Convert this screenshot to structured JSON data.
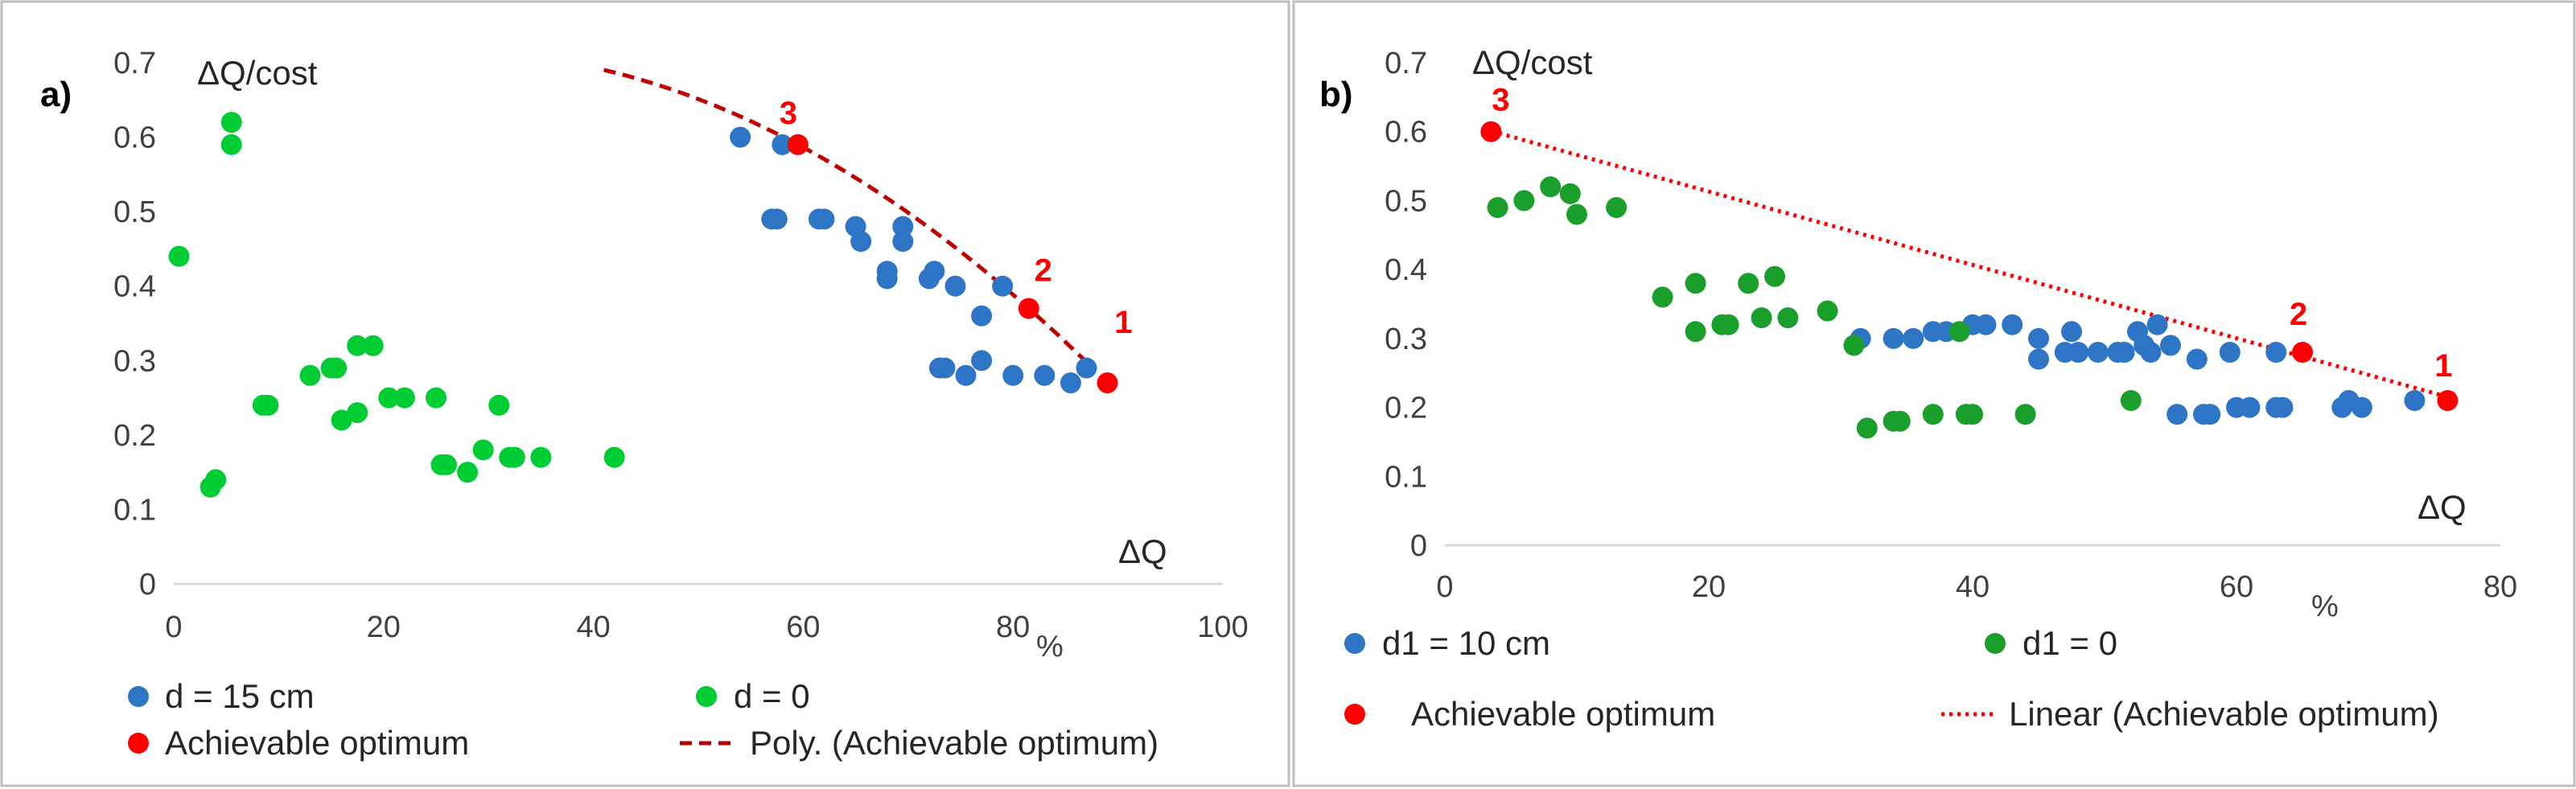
{
  "chart_data": [
    {
      "type": "scatter",
      "panel_label": "a)",
      "ylabel": "ΔQ/cost",
      "xlabel": "ΔQ",
      "percent_label": "%",
      "xlim": [
        0,
        100
      ],
      "ylim": [
        0,
        0.7
      ],
      "x_ticks": [
        "0",
        "20",
        "40",
        "60",
        "80",
        "100"
      ],
      "y_ticks": [
        "0",
        "0.1",
        "0.2",
        "0.3",
        "0.4",
        "0.5",
        "0.6",
        "0.7"
      ],
      "series": [
        {
          "name": "d = 15 cm",
          "color": "#2e75c5",
          "points": [
            [
              54,
              0.6
            ],
            [
              58,
              0.59
            ],
            [
              57,
              0.49
            ],
            [
              57.5,
              0.49
            ],
            [
              61.5,
              0.49
            ],
            [
              62,
              0.49
            ],
            [
              65,
              0.48
            ],
            [
              65.5,
              0.46
            ],
            [
              68,
              0.42
            ],
            [
              68,
              0.41
            ],
            [
              69.5,
              0.48
            ],
            [
              69.5,
              0.46
            ],
            [
              72,
              0.41
            ],
            [
              72.5,
              0.42
            ],
            [
              74.5,
              0.4
            ],
            [
              77,
              0.36
            ],
            [
              79,
              0.4
            ],
            [
              73,
              0.29
            ],
            [
              73.5,
              0.29
            ],
            [
              75.5,
              0.28
            ],
            [
              77,
              0.3
            ],
            [
              80,
              0.28
            ],
            [
              83,
              0.28
            ],
            [
              85.5,
              0.27
            ],
            [
              87,
              0.29
            ]
          ]
        },
        {
          "name": "d = 0",
          "color": "#00cc33",
          "points": [
            [
              0.5,
              0.44
            ],
            [
              5.5,
              0.62
            ],
            [
              5.5,
              0.59
            ],
            [
              3.5,
              0.13
            ],
            [
              4,
              0.14
            ],
            [
              8.5,
              0.24
            ],
            [
              9,
              0.24
            ],
            [
              13,
              0.28
            ],
            [
              15,
              0.29
            ],
            [
              15.5,
              0.29
            ],
            [
              16,
              0.22
            ],
            [
              17.5,
              0.32
            ],
            [
              17.5,
              0.23
            ],
            [
              19,
              0.32
            ],
            [
              20.5,
              0.25
            ],
            [
              22,
              0.25
            ],
            [
              25,
              0.25
            ],
            [
              25.5,
              0.16
            ],
            [
              26,
              0.16
            ],
            [
              28,
              0.15
            ],
            [
              29.5,
              0.18
            ],
            [
              31,
              0.24
            ],
            [
              32,
              0.17
            ],
            [
              32.5,
              0.17
            ],
            [
              35,
              0.17
            ],
            [
              42,
              0.17
            ]
          ]
        },
        {
          "name": "Achievable optimum",
          "color": "#ff0000",
          "points": [
            [
              59.5,
              0.59
            ],
            [
              81.5,
              0.37
            ],
            [
              89,
              0.27
            ]
          ],
          "labels": [
            "3",
            "2",
            "1"
          ]
        }
      ],
      "trendline": {
        "name": "Poly. (Achievable optimum)",
        "style": "dashed",
        "color": "#c00000",
        "x_from": 41,
        "x_to": 87,
        "fit_points": [
          [
            59.5,
            0.59
          ],
          [
            81.5,
            0.37
          ],
          [
            89,
            0.27
          ]
        ]
      }
    },
    {
      "type": "scatter",
      "panel_label": "b)",
      "ylabel": "ΔQ/cost",
      "xlabel": "ΔQ",
      "percent_label": "%",
      "xlim": [
        0,
        80
      ],
      "ylim": [
        0,
        0.7
      ],
      "x_ticks": [
        "0",
        "20",
        "40",
        "60",
        "80"
      ],
      "y_ticks": [
        "0",
        "0.1",
        "0.2",
        "0.3",
        "0.4",
        "0.5",
        "0.6",
        "0.7"
      ],
      "series": [
        {
          "name": "d1 = 10 cm",
          "color": "#2e75c5",
          "points": [
            [
              31.5,
              0.3
            ],
            [
              34,
              0.3
            ],
            [
              35.5,
              0.3
            ],
            [
              37,
              0.31
            ],
            [
              38,
              0.31
            ],
            [
              40,
              0.32
            ],
            [
              41,
              0.32
            ],
            [
              43,
              0.32
            ],
            [
              45,
              0.3
            ],
            [
              45,
              0.27
            ],
            [
              47,
              0.28
            ],
            [
              47.5,
              0.31
            ],
            [
              48,
              0.28
            ],
            [
              49.5,
              0.28
            ],
            [
              51,
              0.28
            ],
            [
              51.5,
              0.28
            ],
            [
              52.5,
              0.31
            ],
            [
              53,
              0.29
            ],
            [
              53.5,
              0.28
            ],
            [
              54,
              0.32
            ],
            [
              55,
              0.29
            ],
            [
              57,
              0.27
            ],
            [
              59.5,
              0.28
            ],
            [
              63,
              0.28
            ],
            [
              55.5,
              0.19
            ],
            [
              57.5,
              0.19
            ],
            [
              58,
              0.19
            ],
            [
              60,
              0.2
            ],
            [
              61,
              0.2
            ],
            [
              63,
              0.2
            ],
            [
              63.5,
              0.2
            ],
            [
              68,
              0.2
            ],
            [
              68.5,
              0.21
            ],
            [
              69.5,
              0.2
            ],
            [
              73.5,
              0.21
            ]
          ]
        },
        {
          "name": "d1 = 0",
          "color": "#1a9e2c",
          "points": [
            [
              4,
              0.49
            ],
            [
              6,
              0.5
            ],
            [
              8,
              0.52
            ],
            [
              9.5,
              0.51
            ],
            [
              10,
              0.48
            ],
            [
              13,
              0.49
            ],
            [
              16.5,
              0.36
            ],
            [
              19,
              0.38
            ],
            [
              19,
              0.31
            ],
            [
              21,
              0.32
            ],
            [
              21.5,
              0.32
            ],
            [
              23,
              0.38
            ],
            [
              24,
              0.33
            ],
            [
              25,
              0.39
            ],
            [
              26,
              0.33
            ],
            [
              29,
              0.34
            ],
            [
              31,
              0.29
            ],
            [
              32,
              0.17
            ],
            [
              34,
              0.18
            ],
            [
              34.5,
              0.18
            ],
            [
              37,
              0.19
            ],
            [
              39,
              0.31
            ],
            [
              39.5,
              0.19
            ],
            [
              40,
              0.19
            ],
            [
              44,
              0.19
            ],
            [
              52,
              0.21
            ]
          ]
        },
        {
          "name": "Achievable optimum",
          "color": "#ff0000",
          "points": [
            [
              3.5,
              0.6
            ],
            [
              65,
              0.28
            ],
            [
              76,
              0.21
            ]
          ],
          "labels": [
            "3",
            "2",
            "1"
          ]
        }
      ],
      "trendline": {
        "name": "Linear (Achievable optimum)",
        "style": "dotted",
        "color": "#ff0000",
        "x_from": 3.5,
        "x_to": 76,
        "fit_points": [
          [
            3.5,
            0.6
          ],
          [
            65,
            0.28
          ],
          [
            76,
            0.21
          ]
        ]
      }
    }
  ]
}
